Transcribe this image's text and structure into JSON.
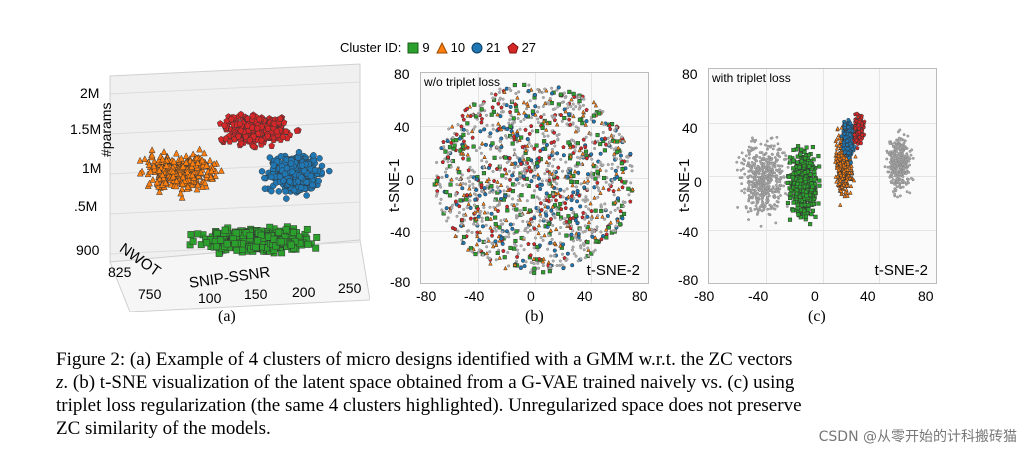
{
  "legend": {
    "title": "Cluster ID:",
    "items": [
      {
        "label": "9",
        "color": "#2ca02c",
        "marker": "square"
      },
      {
        "label": "10",
        "color": "#ff7f0e",
        "marker": "triangle"
      },
      {
        "label": "21",
        "color": "#1f77b4",
        "marker": "circle"
      },
      {
        "label": "27",
        "color": "#d62728",
        "marker": "pentagon"
      }
    ]
  },
  "chart_data": [
    {
      "type": "scatter",
      "subtitle": "(a)",
      "zlabel": "#params",
      "xlabel": "SNIP-SSNR",
      "ylabel": "NWOT",
      "z_ticks": [
        "2M",
        "1.5M",
        "1M",
        ".5M"
      ],
      "x_ticks": [
        "100",
        "150",
        "200",
        "250"
      ],
      "y_ticks": [
        "900",
        "825",
        "750"
      ],
      "clusters": [
        {
          "id": "9",
          "center_snip": 170,
          "center_nwot": 820,
          "center_params_m": 0.35
        },
        {
          "id": "10",
          "center_snip": 130,
          "center_nwot": 860,
          "center_params_m": 1.1
        },
        {
          "id": "21",
          "center_snip": 215,
          "center_nwot": 830,
          "center_params_m": 1.1
        },
        {
          "id": "27",
          "center_snip": 175,
          "center_nwot": 850,
          "center_params_m": 1.55
        }
      ]
    },
    {
      "type": "scatter",
      "subtitle": "(b)",
      "annotation": "w/o triplet loss",
      "xlabel": "t-SNE-2",
      "ylabel": "t-SNE-1",
      "x_ticks": [
        "-80",
        "-40",
        "0",
        "40",
        "80"
      ],
      "y_ticks": [
        "80",
        "40",
        "0",
        "-40",
        "-80"
      ],
      "xlim": [
        -80,
        80
      ],
      "ylim": [
        -80,
        80
      ]
    },
    {
      "type": "scatter",
      "subtitle": "(c)",
      "annotation": "with triplet loss",
      "xlabel": "t-SNE-2",
      "ylabel": "t-SNE-1",
      "x_ticks": [
        "-80",
        "-40",
        "0",
        "40",
        "80"
      ],
      "y_ticks": [
        "80",
        "40",
        "0",
        "-40",
        "-80"
      ],
      "xlim": [
        -80,
        80
      ],
      "ylim": [
        -80,
        80
      ]
    }
  ],
  "caption": {
    "line1": "Figure 2: (a) Example of 4 clusters of micro designs identified with a GMM w.r.t. the ZC vectors",
    "line2a": "z",
    "line2b": ". (b) t-SNE visualization of the latent space obtained from a G-VAE trained naively vs. (c) using",
    "line3": "triplet loss regularization (the same 4 clusters highlighted). Unregularized space does not preserve",
    "line4": "ZC similarity of the models."
  },
  "watermark": "CSDN @从零开始的计科搬砖猫"
}
